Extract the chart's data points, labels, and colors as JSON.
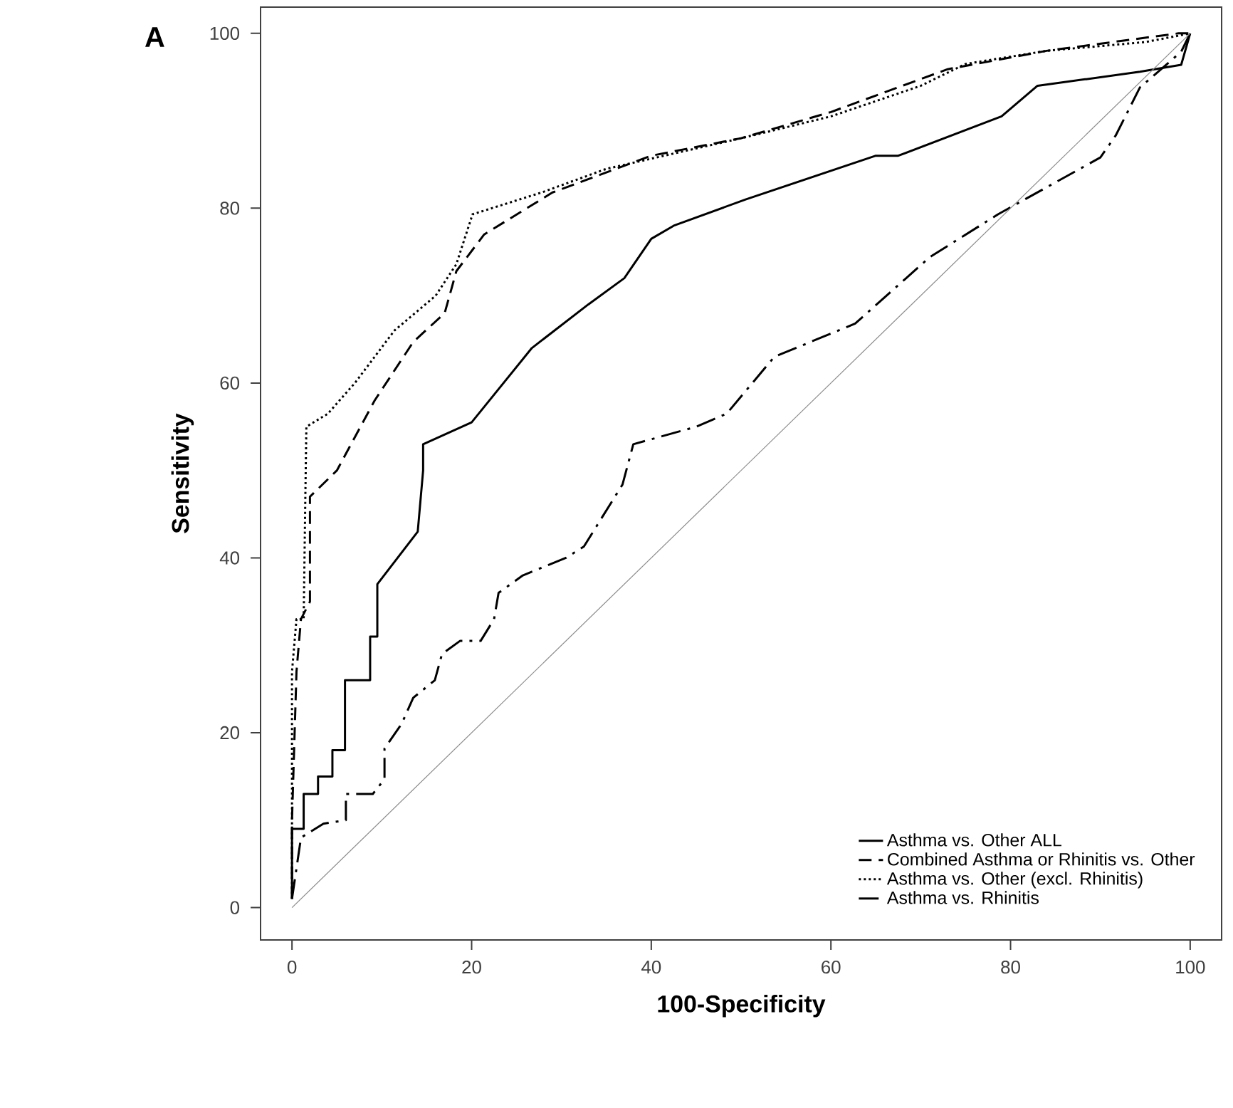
{
  "chart_data": {
    "type": "line",
    "title": "A",
    "xlabel": "100-Specificity",
    "ylabel": "Sensitivity",
    "xlim": [
      -3.5,
      103.5
    ],
    "ylim": [
      -3.7,
      103
    ],
    "xticks": [
      0,
      20,
      40,
      60,
      80,
      100
    ],
    "yticks": [
      0,
      20,
      40,
      60,
      80,
      100
    ],
    "grid": false,
    "legend": "bottom right",
    "marker": "none",
    "series": [
      {
        "name": "Asthma vs. Other ALL",
        "color": "#000000",
        "line_style": "solid",
        "x": [
          0,
          0,
          1.3,
          1.3,
          2.9,
          2.9,
          4.5,
          4.5,
          5.9,
          5.9,
          8.7,
          8.7,
          9.5,
          9.5,
          14,
          14.6,
          14.6,
          20,
          26.7,
          33,
          37,
          40,
          42.5,
          50.5,
          65,
          67.5,
          79,
          83,
          94.4,
          99,
          100
        ],
        "values": [
          1,
          9,
          9,
          13,
          13,
          15,
          15,
          18,
          18,
          26,
          26,
          31,
          31,
          37,
          43,
          50,
          53,
          55.5,
          64,
          69,
          72,
          76.5,
          78,
          81,
          86,
          86,
          90.5,
          94,
          95.6,
          96.4,
          100
        ]
      },
      {
        "name": "Combined Asthma or Rhinitis vs. Other",
        "color": "#000000",
        "line_style": "dashed",
        "x": [
          0,
          0,
          0.5,
          1,
          2,
          2,
          3,
          5,
          9.2,
          13.5,
          17,
          18.3,
          21.4,
          29,
          40,
          50,
          60,
          73,
          84,
          98.7,
          100
        ],
        "values": [
          1,
          10,
          27,
          33,
          35,
          47,
          48,
          50,
          58,
          64.7,
          68,
          72.8,
          77,
          81.8,
          86,
          88,
          91,
          95.9,
          98,
          100,
          100
        ]
      },
      {
        "name": "Asthma vs. Other (excl. Rhinitis)",
        "color": "#000000",
        "line_style": "dotted",
        "x": [
          0,
          0,
          0.5,
          1.3,
          1.5,
          1.6,
          4,
          7,
          11.4,
          16,
          18.3,
          20.1,
          27.8,
          35,
          50,
          60,
          70,
          75,
          84,
          95,
          100
        ],
        "values": [
          1,
          27,
          33,
          33,
          48,
          55,
          56.5,
          60,
          66,
          70,
          73.6,
          79.3,
          81.8,
          84.5,
          88,
          90.5,
          94,
          96.5,
          98,
          99,
          100
        ]
      },
      {
        "name": "Asthma vs. Rhinitis",
        "color": "#000000",
        "line_style": "dashdot",
        "x": [
          0,
          1,
          3.5,
          6,
          6,
          9,
          10.3,
          10.3,
          12.2,
          13.5,
          15.9,
          16.7,
          18.7,
          21,
          22.5,
          23,
          25.7,
          30.5,
          32.5,
          36.8,
          38,
          45,
          48.4,
          53.7,
          62.7,
          71,
          78.6,
          90,
          91.7,
          94.4,
          99,
          100
        ],
        "values": [
          1,
          8,
          9.6,
          10,
          13,
          13,
          14.7,
          18.2,
          21,
          24,
          26,
          29,
          30.5,
          30.5,
          33,
          36,
          38,
          40,
          41.3,
          48.4,
          53,
          55,
          56.5,
          63,
          66.8,
          74.4,
          79.3,
          85.8,
          88.3,
          93.8,
          97.9,
          100
        ]
      },
      {
        "color": "#8c8c8c",
        "line_style": "solid",
        "x": [
          0,
          100
        ],
        "values": [
          0,
          100
        ]
      }
    ]
  }
}
